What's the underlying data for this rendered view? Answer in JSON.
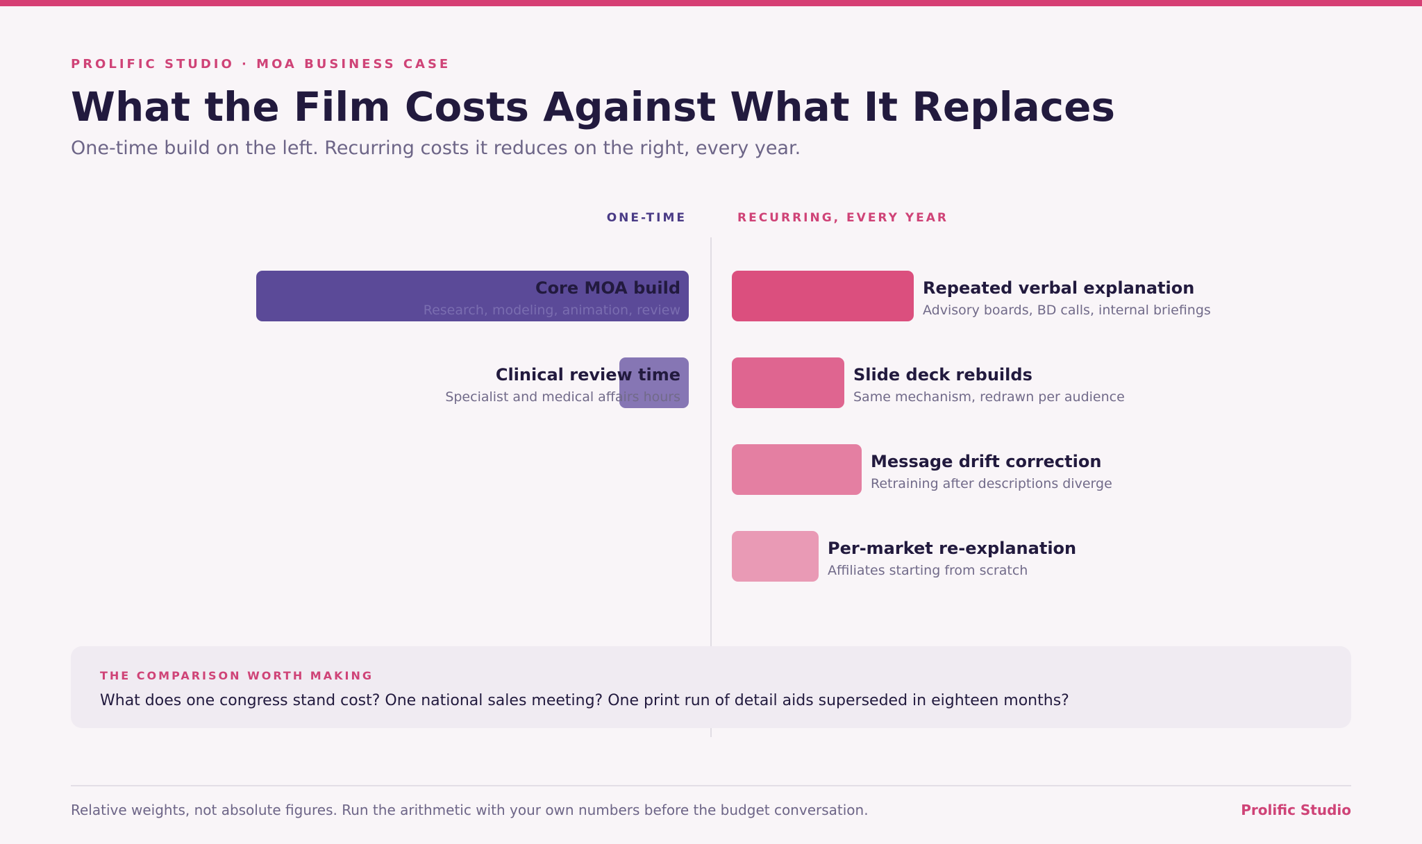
{
  "header": {
    "eyebrow": "PROLIFIC STUDIO · MOA BUSINESS CASE",
    "title": "What the Film Costs Against What It Replaces",
    "subtitle": "One-time build on the left. Recurring costs it reduces on the right, every year."
  },
  "chart_data": {
    "type": "bar",
    "note": "Relative weights",
    "columns": {
      "left": "ONE-TIME",
      "right": "RECURRING, EVERY YEAR"
    },
    "series": [
      {
        "name": "ONE-TIME",
        "items": [
          {
            "label": "Core MOA build",
            "detail": "Research, modeling, animation, review",
            "value": 100,
            "color": "#5b4a98"
          },
          {
            "label": "Clinical review time",
            "detail": "Specialist and medical affairs hours",
            "value": 16,
            "color": "#8676b4"
          }
        ]
      },
      {
        "name": "RECURRING, EVERY YEAR",
        "items": [
          {
            "label": "Repeated verbal explanation",
            "detail": "Advisory boards, BD calls, internal briefings",
            "value": 42,
            "color": "#db4f7e"
          },
          {
            "label": "Slide deck rebuilds",
            "detail": "Same mechanism, redrawn per audience",
            "value": 26,
            "color": "#df6590"
          },
          {
            "label": "Message drift correction",
            "detail": "Retraining after descriptions diverge",
            "value": 30,
            "color": "#e47fa2"
          },
          {
            "label": "Per-market re-explanation",
            "detail": "Affiliates starting from scratch",
            "value": 20,
            "color": "#e99ab5"
          }
        ]
      }
    ]
  },
  "callout": {
    "kicker": "THE COMPARISON WORTH MAKING",
    "text": "What does one congress stand cost? One national sales meeting? One print run of detail aids superseded in eighteen months?"
  },
  "footer": {
    "note": "Relative weights, not absolute figures. Run the arithmetic with your own numbers before the budget conversation.",
    "brand": "Prolific Studio"
  }
}
